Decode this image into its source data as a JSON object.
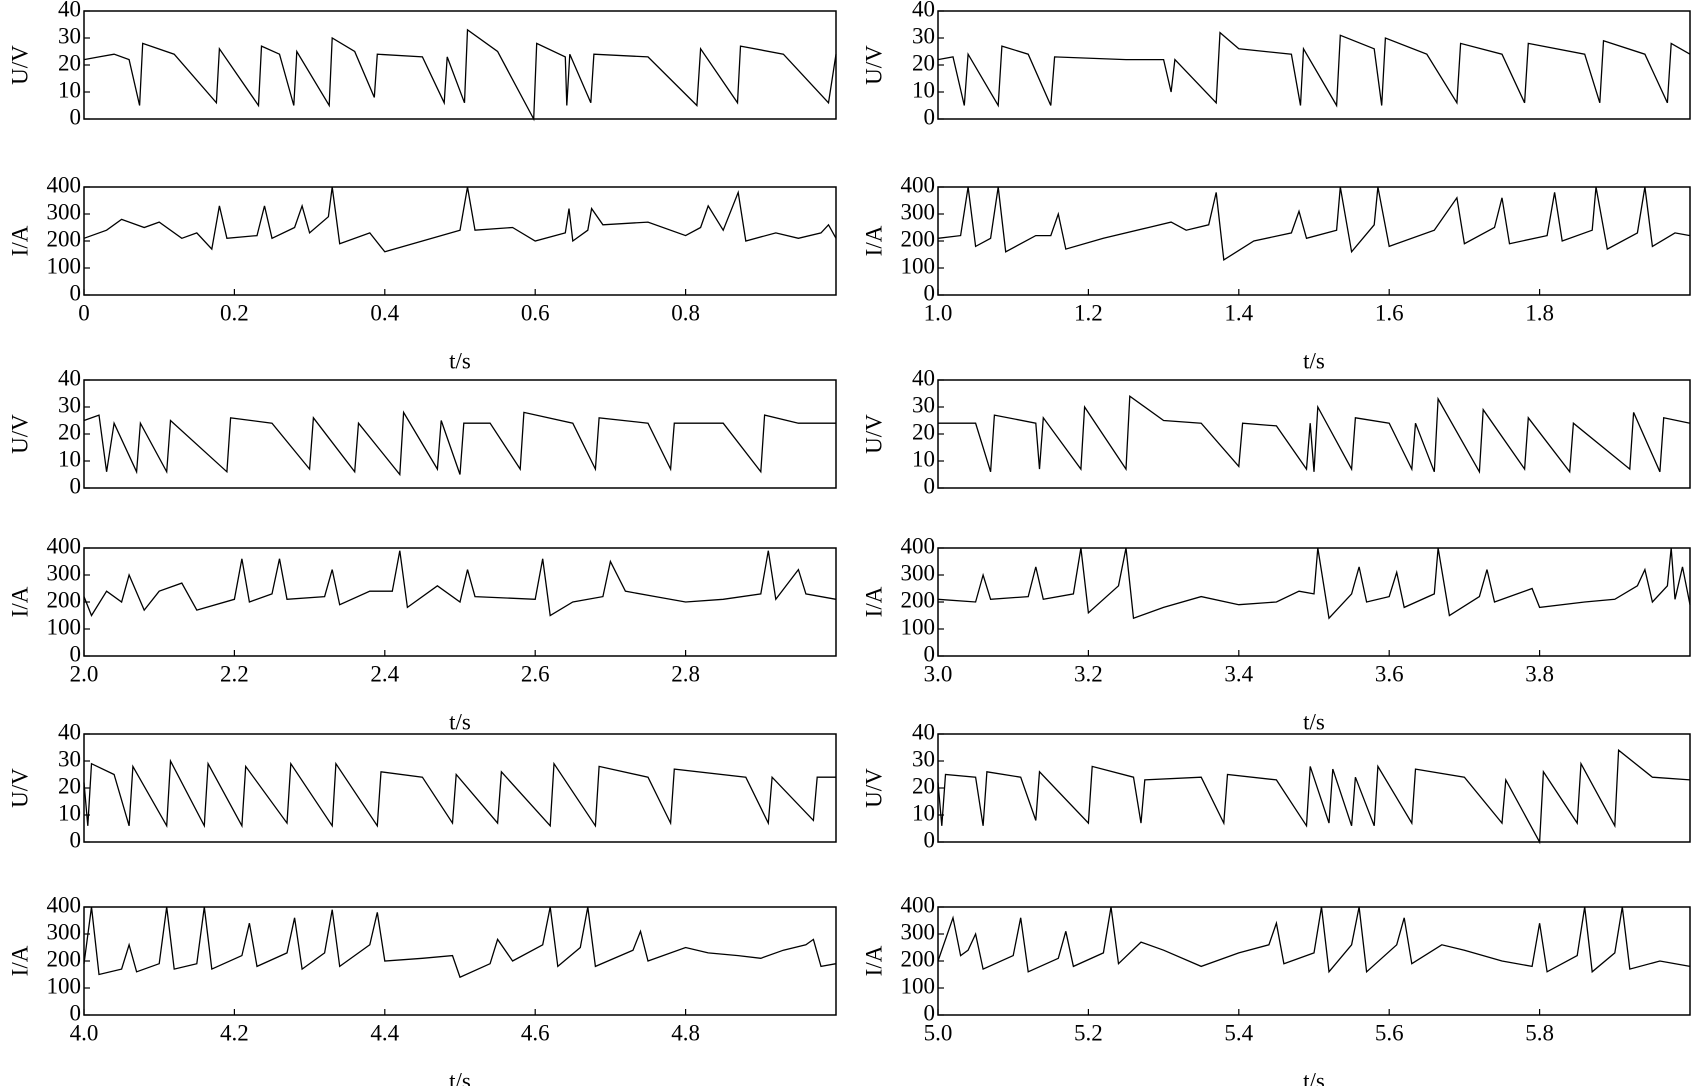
{
  "chart_data": [
    {
      "type": "line",
      "ylabel": "U/V",
      "color": "#000000",
      "xlim": [
        0,
        1
      ],
      "ylim": [
        0,
        40
      ],
      "yticks": [
        0,
        10,
        20,
        30,
        40
      ],
      "x": [
        0,
        0.02,
        0.04,
        0.06,
        0.074,
        0.078,
        0.12,
        0.176,
        0.18,
        0.232,
        0.236,
        0.26,
        0.279,
        0.283,
        0.326,
        0.33,
        0.36,
        0.386,
        0.39,
        0.45,
        0.479,
        0.483,
        0.506,
        0.51,
        0.55,
        0.598,
        0.602,
        0.64,
        0.642,
        0.646,
        0.674,
        0.678,
        0.75,
        0.815,
        0.82,
        0.869,
        0.873,
        0.93,
        0.99,
        1
      ],
      "values": [
        22,
        23,
        24,
        22,
        5,
        28,
        24,
        6,
        26,
        5,
        27,
        24,
        5,
        25,
        5,
        30,
        25,
        8,
        24,
        23,
        6,
        23,
        6,
        33,
        25,
        0,
        28,
        23,
        5,
        24,
        6,
        24,
        23,
        5,
        26,
        6,
        27,
        24,
        6,
        24
      ]
    },
    {
      "type": "line",
      "ylabel": "I/A",
      "xlabel": "t/s",
      "color": "#000000",
      "xlim": [
        0,
        1
      ],
      "ylim": [
        0,
        400
      ],
      "yticks": [
        0,
        100,
        200,
        300,
        400
      ],
      "xticks": [
        0,
        0.2,
        0.4,
        0.6,
        0.8
      ],
      "x": [
        0,
        0.03,
        0.05,
        0.08,
        0.1,
        0.13,
        0.15,
        0.17,
        0.18,
        0.19,
        0.23,
        0.24,
        0.25,
        0.28,
        0.29,
        0.3,
        0.325,
        0.33,
        0.34,
        0.38,
        0.4,
        0.45,
        0.5,
        0.51,
        0.52,
        0.57,
        0.6,
        0.64,
        0.645,
        0.65,
        0.67,
        0.675,
        0.69,
        0.75,
        0.8,
        0.82,
        0.83,
        0.85,
        0.87,
        0.88,
        0.92,
        0.95,
        0.98,
        0.99,
        1
      ],
      "values": [
        210,
        240,
        280,
        250,
        270,
        210,
        230,
        170,
        330,
        210,
        220,
        330,
        210,
        250,
        330,
        230,
        290,
        400,
        190,
        230,
        160,
        200,
        240,
        400,
        240,
        250,
        200,
        230,
        320,
        200,
        240,
        320,
        260,
        270,
        220,
        250,
        330,
        240,
        380,
        200,
        230,
        210,
        230,
        260,
        210
      ]
    },
    {
      "type": "line",
      "ylabel": "U/V",
      "color": "#000000",
      "xlim": [
        1,
        2
      ],
      "ylim": [
        0,
        40
      ],
      "yticks": [
        0,
        10,
        20,
        30,
        40
      ],
      "x": [
        1,
        1.02,
        1.035,
        1.04,
        1.08,
        1.085,
        1.12,
        1.15,
        1.155,
        1.25,
        1.3,
        1.31,
        1.315,
        1.37,
        1.375,
        1.4,
        1.47,
        1.482,
        1.486,
        1.53,
        1.535,
        1.58,
        1.59,
        1.595,
        1.65,
        1.69,
        1.695,
        1.75,
        1.78,
        1.785,
        1.86,
        1.88,
        1.885,
        1.94,
        1.97,
        1.975,
        2
      ],
      "values": [
        22,
        23,
        5,
        24,
        5,
        27,
        24,
        5,
        23,
        22,
        22,
        10,
        22,
        6,
        32,
        26,
        24,
        5,
        26,
        5,
        31,
        26,
        5,
        30,
        24,
        6,
        28,
        24,
        6,
        28,
        24,
        6,
        29,
        24,
        6,
        28,
        24
      ]
    },
    {
      "type": "line",
      "ylabel": "I/A",
      "xlabel": "t/s",
      "color": "#000000",
      "xlim": [
        1,
        2
      ],
      "ylim": [
        0,
        400
      ],
      "yticks": [
        0,
        100,
        200,
        300,
        400
      ],
      "xticks": [
        {
          "value": 1,
          "label": "1.0"
        },
        1.2,
        1.4,
        1.6,
        1.8
      ],
      "x": [
        1,
        1.03,
        1.04,
        1.05,
        1.07,
        1.08,
        1.09,
        1.13,
        1.15,
        1.16,
        1.17,
        1.22,
        1.28,
        1.31,
        1.33,
        1.36,
        1.37,
        1.38,
        1.42,
        1.47,
        1.48,
        1.49,
        1.53,
        1.535,
        1.55,
        1.58,
        1.585,
        1.6,
        1.66,
        1.69,
        1.7,
        1.74,
        1.75,
        1.76,
        1.81,
        1.82,
        1.83,
        1.87,
        1.875,
        1.89,
        1.93,
        1.94,
        1.95,
        1.98,
        2
      ],
      "values": [
        210,
        220,
        400,
        180,
        210,
        400,
        160,
        220,
        220,
        300,
        170,
        210,
        250,
        270,
        240,
        260,
        380,
        130,
        200,
        230,
        310,
        210,
        240,
        400,
        160,
        260,
        400,
        180,
        240,
        360,
        190,
        250,
        360,
        190,
        220,
        380,
        200,
        240,
        400,
        170,
        230,
        400,
        180,
        230,
        220
      ]
    },
    {
      "type": "line",
      "ylabel": "U/V",
      "color": "#000000",
      "xlim": [
        2,
        3
      ],
      "ylim": [
        0,
        40
      ],
      "yticks": [
        0,
        10,
        20,
        30,
        40
      ],
      "x": [
        2,
        2.02,
        2.03,
        2.04,
        2.07,
        2.075,
        2.11,
        2.115,
        2.19,
        2.195,
        2.25,
        2.3,
        2.305,
        2.36,
        2.365,
        2.42,
        2.425,
        2.47,
        2.475,
        2.5,
        2.505,
        2.54,
        2.58,
        2.585,
        2.65,
        2.68,
        2.685,
        2.75,
        2.78,
        2.785,
        2.85,
        2.9,
        2.905,
        2.95,
        3
      ],
      "values": [
        25,
        27,
        6,
        24,
        6,
        24,
        6,
        25,
        6,
        26,
        24,
        7,
        26,
        6,
        24,
        5,
        28,
        7,
        25,
        5,
        24,
        24,
        7,
        28,
        24,
        7,
        26,
        24,
        7,
        24,
        24,
        6,
        27,
        24,
        24
      ]
    },
    {
      "type": "line",
      "ylabel": "I/A",
      "xlabel": "t/s",
      "color": "#000000",
      "xlim": [
        2,
        3
      ],
      "ylim": [
        0,
        400
      ],
      "yticks": [
        0,
        100,
        200,
        300,
        400
      ],
      "xticks": [
        {
          "value": 2,
          "label": "2.0"
        },
        2.2,
        2.4,
        2.6,
        2.8
      ],
      "x": [
        2,
        2.01,
        2.03,
        2.05,
        2.06,
        2.08,
        2.1,
        2.13,
        2.15,
        2.2,
        2.21,
        2.22,
        2.25,
        2.26,
        2.27,
        2.32,
        2.33,
        2.34,
        2.38,
        2.41,
        2.42,
        2.43,
        2.47,
        2.5,
        2.51,
        2.52,
        2.6,
        2.61,
        2.62,
        2.65,
        2.69,
        2.7,
        2.72,
        2.76,
        2.8,
        2.85,
        2.9,
        2.91,
        2.92,
        2.95,
        2.96,
        3
      ],
      "values": [
        220,
        150,
        240,
        200,
        300,
        170,
        240,
        270,
        170,
        210,
        360,
        200,
        230,
        360,
        210,
        220,
        320,
        190,
        240,
        240,
        390,
        180,
        260,
        200,
        320,
        220,
        210,
        360,
        150,
        200,
        220,
        350,
        240,
        220,
        200,
        210,
        230,
        390,
        210,
        320,
        230,
        210
      ]
    },
    {
      "type": "line",
      "ylabel": "U/V",
      "color": "#000000",
      "xlim": [
        3,
        4
      ],
      "ylim": [
        0,
        40
      ],
      "yticks": [
        0,
        10,
        20,
        30,
        40
      ],
      "x": [
        3,
        3.05,
        3.07,
        3.075,
        3.13,
        3.135,
        3.14,
        3.19,
        3.195,
        3.25,
        3.255,
        3.3,
        3.35,
        3.4,
        3.405,
        3.45,
        3.49,
        3.495,
        3.5,
        3.505,
        3.55,
        3.555,
        3.6,
        3.63,
        3.635,
        3.66,
        3.665,
        3.72,
        3.725,
        3.78,
        3.785,
        3.84,
        3.845,
        3.92,
        3.925,
        3.96,
        3.965,
        4
      ],
      "values": [
        24,
        24,
        6,
        27,
        24,
        7,
        26,
        7,
        30,
        7,
        34,
        25,
        24,
        8,
        24,
        23,
        7,
        24,
        6,
        30,
        7,
        26,
        24,
        7,
        24,
        6,
        33,
        6,
        29,
        7,
        26,
        6,
        24,
        7,
        28,
        6,
        26,
        24
      ]
    },
    {
      "type": "line",
      "ylabel": "I/A",
      "xlabel": "t/s",
      "color": "#000000",
      "xlim": [
        3,
        4
      ],
      "ylim": [
        0,
        400
      ],
      "yticks": [
        0,
        100,
        200,
        300,
        400
      ],
      "xticks": [
        {
          "value": 3,
          "label": "3.0"
        },
        3.2,
        3.4,
        3.6,
        3.8
      ],
      "x": [
        3,
        3.05,
        3.06,
        3.07,
        3.12,
        3.13,
        3.14,
        3.18,
        3.19,
        3.2,
        3.24,
        3.25,
        3.26,
        3.3,
        3.35,
        3.4,
        3.45,
        3.48,
        3.5,
        3.505,
        3.52,
        3.55,
        3.56,
        3.57,
        3.6,
        3.61,
        3.62,
        3.66,
        3.665,
        3.68,
        3.72,
        3.73,
        3.74,
        3.79,
        3.8,
        3.86,
        3.9,
        3.93,
        3.94,
        3.95,
        3.97,
        3.975,
        3.98,
        3.99,
        4
      ],
      "values": [
        210,
        200,
        300,
        210,
        220,
        330,
        210,
        230,
        400,
        160,
        260,
        400,
        140,
        180,
        220,
        190,
        200,
        240,
        230,
        400,
        140,
        230,
        330,
        200,
        220,
        310,
        180,
        230,
        400,
        150,
        220,
        320,
        200,
        250,
        180,
        200,
        210,
        260,
        320,
        200,
        260,
        400,
        210,
        330,
        190
      ]
    },
    {
      "type": "line",
      "ylabel": "U/V",
      "color": "#000000",
      "xlim": [
        4,
        5
      ],
      "ylim": [
        0,
        40
      ],
      "yticks": [
        0,
        10,
        20,
        30,
        40
      ],
      "x": [
        4,
        4.005,
        4.01,
        4.04,
        4.06,
        4.065,
        4.11,
        4.115,
        4.16,
        4.165,
        4.21,
        4.215,
        4.27,
        4.275,
        4.33,
        4.335,
        4.39,
        4.395,
        4.45,
        4.49,
        4.495,
        4.55,
        4.555,
        4.62,
        4.625,
        4.68,
        4.685,
        4.75,
        4.78,
        4.785,
        4.88,
        4.91,
        4.915,
        4.97,
        4.975,
        5
      ],
      "values": [
        22,
        6,
        29,
        25,
        6,
        28,
        6,
        30,
        6,
        29,
        6,
        28,
        7,
        29,
        6,
        29,
        6,
        26,
        24,
        7,
        25,
        7,
        26,
        6,
        29,
        6,
        28,
        24,
        7,
        27,
        24,
        7,
        24,
        8,
        24,
        24
      ]
    },
    {
      "type": "line",
      "ylabel": "I/A",
      "xlabel": "t/s",
      "color": "#000000",
      "xlim": [
        4,
        5
      ],
      "ylim": [
        0,
        400
      ],
      "yticks": [
        0,
        100,
        200,
        300,
        400
      ],
      "xticks": [
        {
          "value": 4,
          "label": "4.0"
        },
        4.2,
        4.4,
        4.6,
        4.8
      ],
      "x": [
        4,
        4.01,
        4.02,
        4.05,
        4.06,
        4.07,
        4.1,
        4.11,
        4.12,
        4.15,
        4.16,
        4.17,
        4.21,
        4.22,
        4.23,
        4.27,
        4.28,
        4.29,
        4.32,
        4.33,
        4.34,
        4.38,
        4.39,
        4.4,
        4.45,
        4.49,
        4.5,
        4.54,
        4.55,
        4.57,
        4.61,
        4.62,
        4.63,
        4.66,
        4.67,
        4.68,
        4.73,
        4.74,
        4.75,
        4.8,
        4.83,
        4.87,
        4.9,
        4.93,
        4.96,
        4.97,
        4.98,
        5
      ],
      "values": [
        190,
        400,
        150,
        170,
        260,
        160,
        190,
        400,
        170,
        190,
        400,
        170,
        220,
        340,
        180,
        230,
        360,
        170,
        230,
        390,
        180,
        260,
        380,
        200,
        210,
        220,
        140,
        190,
        280,
        200,
        260,
        400,
        180,
        250,
        400,
        180,
        240,
        310,
        200,
        250,
        230,
        220,
        210,
        240,
        260,
        280,
        180,
        190
      ]
    },
    {
      "type": "line",
      "ylabel": "U/V",
      "color": "#000000",
      "xlim": [
        5,
        6
      ],
      "ylim": [
        0,
        40
      ],
      "yticks": [
        0,
        10,
        20,
        30,
        40
      ],
      "x": [
        5,
        5.005,
        5.01,
        5.05,
        5.06,
        5.065,
        5.11,
        5.13,
        5.135,
        5.2,
        5.205,
        5.26,
        5.27,
        5.275,
        5.35,
        5.38,
        5.385,
        5.45,
        5.49,
        5.495,
        5.52,
        5.525,
        5.55,
        5.555,
        5.58,
        5.585,
        5.63,
        5.635,
        5.7,
        5.75,
        5.755,
        5.8,
        5.805,
        5.85,
        5.855,
        5.9,
        5.905,
        5.95,
        6
      ],
      "values": [
        22,
        6,
        25,
        24,
        6,
        26,
        24,
        8,
        26,
        7,
        28,
        24,
        7,
        23,
        24,
        7,
        25,
        23,
        6,
        28,
        7,
        27,
        6,
        24,
        6,
        28,
        7,
        27,
        24,
        7,
        23,
        0,
        26,
        7,
        29,
        6,
        34,
        24,
        23
      ]
    },
    {
      "type": "line",
      "ylabel": "I/A",
      "xlabel": "t/s",
      "color": "#000000",
      "xlim": [
        5,
        6
      ],
      "ylim": [
        0,
        400
      ],
      "yticks": [
        0,
        100,
        200,
        300,
        400
      ],
      "xticks": [
        {
          "value": 5,
          "label": "5.0"
        },
        5.2,
        5.4,
        5.6,
        5.8
      ],
      "x": [
        5,
        5.02,
        5.03,
        5.04,
        5.05,
        5.06,
        5.1,
        5.11,
        5.12,
        5.16,
        5.17,
        5.18,
        5.22,
        5.23,
        5.24,
        5.27,
        5.3,
        5.35,
        5.4,
        5.44,
        5.45,
        5.46,
        5.5,
        5.51,
        5.52,
        5.55,
        5.56,
        5.57,
        5.61,
        5.62,
        5.63,
        5.67,
        5.7,
        5.75,
        5.79,
        5.8,
        5.81,
        5.85,
        5.86,
        5.87,
        5.9,
        5.91,
        5.92,
        5.96,
        6
      ],
      "values": [
        200,
        360,
        220,
        240,
        300,
        170,
        220,
        360,
        160,
        210,
        310,
        180,
        230,
        400,
        190,
        270,
        240,
        180,
        230,
        260,
        340,
        190,
        230,
        400,
        160,
        260,
        400,
        160,
        260,
        360,
        190,
        260,
        240,
        200,
        180,
        340,
        160,
        220,
        400,
        160,
        230,
        400,
        170,
        200,
        180
      ]
    }
  ]
}
